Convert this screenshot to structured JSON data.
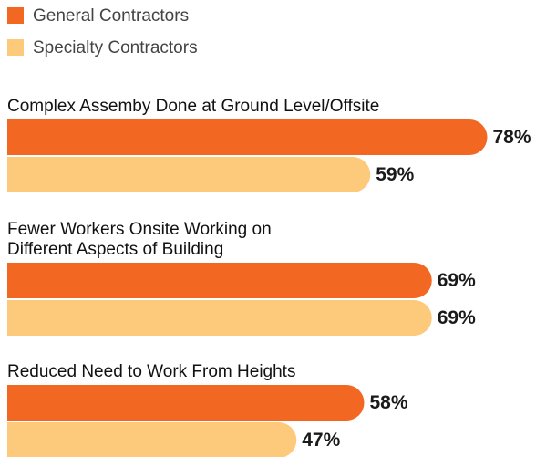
{
  "chart_data": {
    "type": "bar",
    "orientation": "horizontal",
    "categories": [
      [
        "Complex Assemby Done at Ground Level/Offsite"
      ],
      [
        "Fewer Workers Onsite Working on",
        "Different Aspects of Building"
      ],
      [
        "Reduced Need to Work From Heights"
      ]
    ],
    "series": [
      {
        "name": "General Contractors",
        "color": "#f26722",
        "values": [
          78,
          69,
          58
        ],
        "value_labels": [
          "78%",
          "69%",
          "58%"
        ]
      },
      {
        "name": "Specialty Contractors",
        "color": "#fdc97a",
        "values": [
          59,
          69,
          47
        ],
        "value_labels": [
          "59%",
          "69%",
          "47%"
        ]
      }
    ]
  }
}
